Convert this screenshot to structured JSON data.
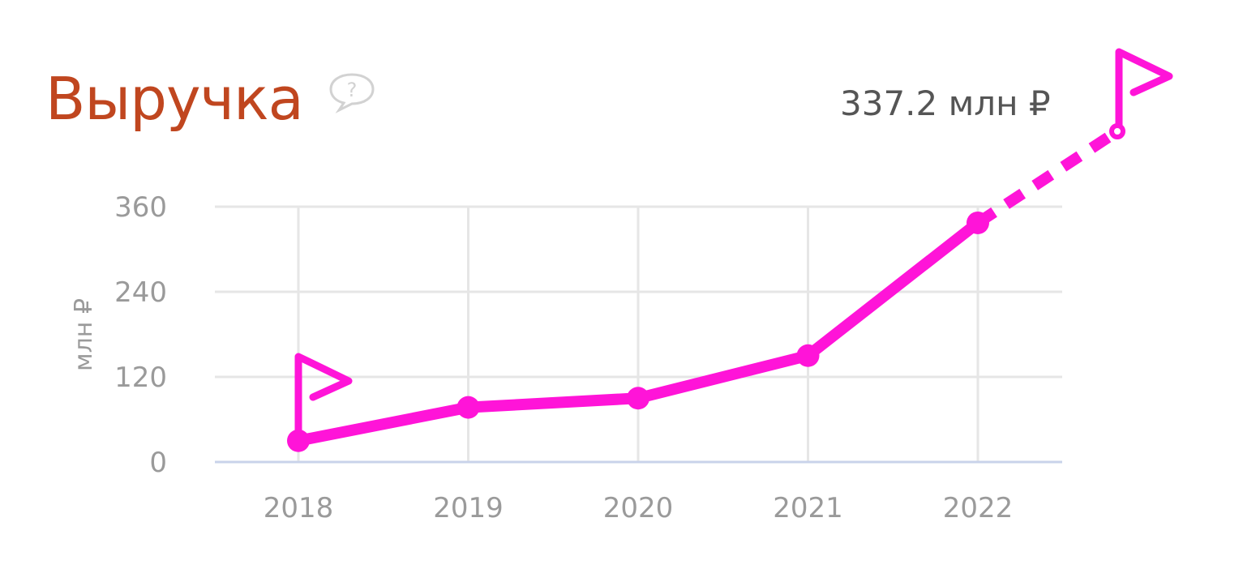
{
  "card": {
    "title": "Выручка",
    "help_icon": "question-speech-bubble-icon",
    "forecast_label": "337.2 млн ₽"
  },
  "colors": {
    "title": "#c0461f",
    "series": "#ff14d8",
    "grid": "#e6e6e6",
    "baseline": "#c9d3ea",
    "tick_text": "#9a9a9a"
  },
  "chart_data": {
    "type": "line",
    "ylabel": "млн ₽",
    "ylim": [
      0,
      360
    ],
    "y_ticks": [
      0,
      120,
      240,
      360
    ],
    "categories": [
      "2018",
      "2019",
      "2020",
      "2021",
      "2022"
    ],
    "series": [
      {
        "values": [
          30,
          77,
          90,
          150,
          337.2
        ]
      }
    ],
    "forecast": {
      "from": "2022",
      "value": 337.2,
      "style": "dashed"
    },
    "markers": [
      "flag-icon",
      "flag-icon"
    ],
    "grid": true
  }
}
